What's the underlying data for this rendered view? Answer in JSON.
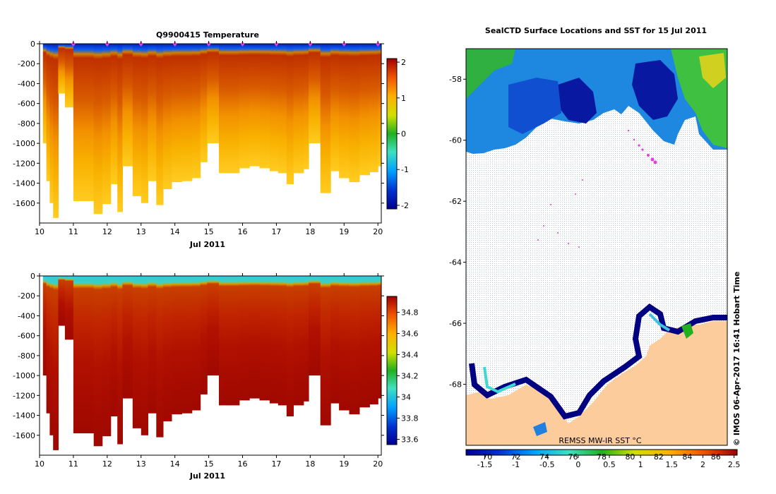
{
  "chart_data": [
    {
      "type": "heatmap",
      "title": "Q9900415  Temperature",
      "xlabel": "Jul 2011",
      "ylabel": "",
      "x_ticks": [
        "10",
        "11",
        "12",
        "13",
        "14",
        "15",
        "16",
        "17",
        "18",
        "19",
        "20"
      ],
      "y_ticks": [
        "0",
        "-200",
        "-400",
        "-600",
        "-800",
        "-1000",
        "-1200",
        "-1400",
        "-1600"
      ],
      "xlim": [
        10,
        20.1
      ],
      "ylim": [
        -1800,
        0
      ],
      "colorbar": {
        "ticks": [
          "2",
          "1",
          "0",
          "-1",
          "-2"
        ],
        "range": [
          -2.1,
          2.1
        ]
      },
      "profile_markers_x": [
        11,
        12,
        13,
        14,
        15,
        16,
        17,
        18,
        19,
        20
      ],
      "profiles": [
        {
          "x": 10.1,
          "maxdepth": -1000
        },
        {
          "x": 10.2,
          "maxdepth": -1380
        },
        {
          "x": 10.3,
          "maxdepth": -1600
        },
        {
          "x": 10.4,
          "maxdepth": -1750
        },
        {
          "x": 10.55,
          "maxdepth": -500
        },
        {
          "x": 10.75,
          "maxdepth": -640
        },
        {
          "x": 11.0,
          "maxdepth": -1580
        },
        {
          "x": 11.4,
          "maxdepth": -1580
        },
        {
          "x": 11.6,
          "maxdepth": -1710
        },
        {
          "x": 11.85,
          "maxdepth": -1610
        },
        {
          "x": 12.1,
          "maxdepth": -1410
        },
        {
          "x": 12.3,
          "maxdepth": -1690
        },
        {
          "x": 12.45,
          "maxdepth": -1230
        },
        {
          "x": 12.75,
          "maxdepth": -1530
        },
        {
          "x": 13.0,
          "maxdepth": -1600
        },
        {
          "x": 13.2,
          "maxdepth": -1380
        },
        {
          "x": 13.45,
          "maxdepth": -1620
        },
        {
          "x": 13.65,
          "maxdepth": -1460
        },
        {
          "x": 13.9,
          "maxdepth": -1390
        },
        {
          "x": 14.2,
          "maxdepth": -1380
        },
        {
          "x": 14.5,
          "maxdepth": -1350
        },
        {
          "x": 14.75,
          "maxdepth": -1190
        },
        {
          "x": 14.95,
          "maxdepth": -1000
        },
        {
          "x": 15.3,
          "maxdepth": -1300
        },
        {
          "x": 15.6,
          "maxdepth": -1300
        },
        {
          "x": 15.9,
          "maxdepth": -1250
        },
        {
          "x": 16.2,
          "maxdepth": -1230
        },
        {
          "x": 16.5,
          "maxdepth": -1250
        },
        {
          "x": 16.8,
          "maxdepth": -1280
        },
        {
          "x": 17.05,
          "maxdepth": -1300
        },
        {
          "x": 17.3,
          "maxdepth": -1410
        },
        {
          "x": 17.5,
          "maxdepth": -1300
        },
        {
          "x": 17.8,
          "maxdepth": -1260
        },
        {
          "x": 17.95,
          "maxdepth": -1000
        },
        {
          "x": 18.3,
          "maxdepth": -1500
        },
        {
          "x": 18.6,
          "maxdepth": -1280
        },
        {
          "x": 18.85,
          "maxdepth": -1350
        },
        {
          "x": 19.15,
          "maxdepth": -1390
        },
        {
          "x": 19.45,
          "maxdepth": -1320
        },
        {
          "x": 19.75,
          "maxdepth": -1290
        },
        {
          "x": 20.0,
          "maxdepth": -1230
        }
      ]
    },
    {
      "type": "heatmap",
      "title": "",
      "xlabel": "Jul 2011",
      "ylabel": "",
      "x_ticks": [
        "10",
        "11",
        "12",
        "13",
        "14",
        "15",
        "16",
        "17",
        "18",
        "19",
        "20"
      ],
      "y_ticks": [
        "0",
        "-200",
        "-400",
        "-600",
        "-800",
        "-1000",
        "-1200",
        "-1400",
        "-1600"
      ],
      "xlim": [
        10,
        20.1
      ],
      "ylim": [
        -1800,
        0
      ],
      "colorbar": {
        "ticks": [
          "34.8",
          "34.6",
          "34.4",
          "34.2",
          "34",
          "33.8",
          "33.6"
        ],
        "range": [
          33.55,
          34.95
        ]
      }
    },
    {
      "type": "heatmap",
      "title": "SealCTD Surface Locations and SST for 15 Jul 2011",
      "xlabel": "",
      "ylabel": "",
      "y_ticks": [
        "-58",
        "-60",
        "-62",
        "-64",
        "-66",
        "-68"
      ],
      "ylim": [
        -70.0,
        -57.0
      ],
      "colorbar": {
        "ticks": [
          "-1.5",
          "-1",
          "-0.5",
          "0",
          "0.5",
          "1",
          "1.5",
          "2",
          "2.5"
        ],
        "secondary_ticks": [
          "70",
          "72",
          "74",
          "76",
          "78",
          "80",
          "82",
          "84",
          "86"
        ],
        "range": [
          -1.8,
          2.55
        ]
      },
      "sst_label": "REMSS MW-IR SST °C"
    }
  ],
  "footer": {
    "credit": "©  IMOS 06-Apr-2017 16:41 Hobart Time"
  },
  "colors": {
    "marker": "#e040e0",
    "land": "#fccc9c",
    "coast": "#000080"
  }
}
